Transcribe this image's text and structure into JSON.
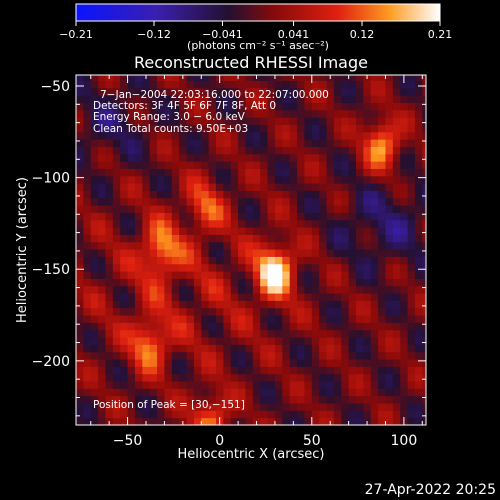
{
  "chart_data": {
    "type": "heatmap",
    "title": "Reconstructed RHESSI Image",
    "xlabel": "Heliocentric X (arcsec)",
    "ylabel": "Heliocentric Y (arcsec)",
    "xlim": [
      -78,
      112
    ],
    "ylim": [
      -235,
      -44
    ],
    "x_ticks": [
      -50,
      0,
      50,
      100
    ],
    "y_ticks": [
      -50,
      -100,
      -150,
      -200
    ],
    "x_tick_labels": [
      "−50",
      "0",
      "50",
      "100"
    ],
    "y_tick_labels": [
      "−50",
      "−100",
      "−150",
      "−200"
    ],
    "colorbar": {
      "range": [
        -0.21,
        0.21
      ],
      "ticks": [
        -0.21,
        -0.12,
        -0.041,
        0.041,
        0.12,
        0.21
      ],
      "tick_labels": [
        "−0.21",
        "−0.12",
        "−0.041",
        "0.041",
        "0.12",
        "0.21"
      ],
      "units_label": "(photons cm⁻² s⁻¹ asec⁻²)",
      "colormap": "blue-purple-red-orange-yellow-white"
    },
    "info_lines": [
      "7−Jan−2004 22:03:16.000 to 22:07:00.000",
      "Detectors: 3F 4F 5F 6F 7F 8F, Att 0",
      "Energy Range: 3.0 − 6.0 keV",
      "Clean     Total counts: 9.50E+03"
    ],
    "peak_label": "Position of Peak = [30,−151]",
    "peak_position": [
      30,
      -151
    ],
    "grid": false,
    "sources": [
      {
        "x": 30,
        "y": -151,
        "peak": 0.21
      },
      {
        "x": 88,
        "y": -82,
        "peak": 0.15
      },
      {
        "x": -32,
        "y": -140,
        "peak": 0.14
      },
      {
        "x": -38,
        "y": -190,
        "peak": 0.13
      },
      {
        "x": -8,
        "y": -115,
        "peak": 0.1
      },
      {
        "x": -5,
        "y": -232,
        "peak": 0.12
      }
    ]
  },
  "footer": {
    "date": "27-Apr-2022 20:25"
  }
}
